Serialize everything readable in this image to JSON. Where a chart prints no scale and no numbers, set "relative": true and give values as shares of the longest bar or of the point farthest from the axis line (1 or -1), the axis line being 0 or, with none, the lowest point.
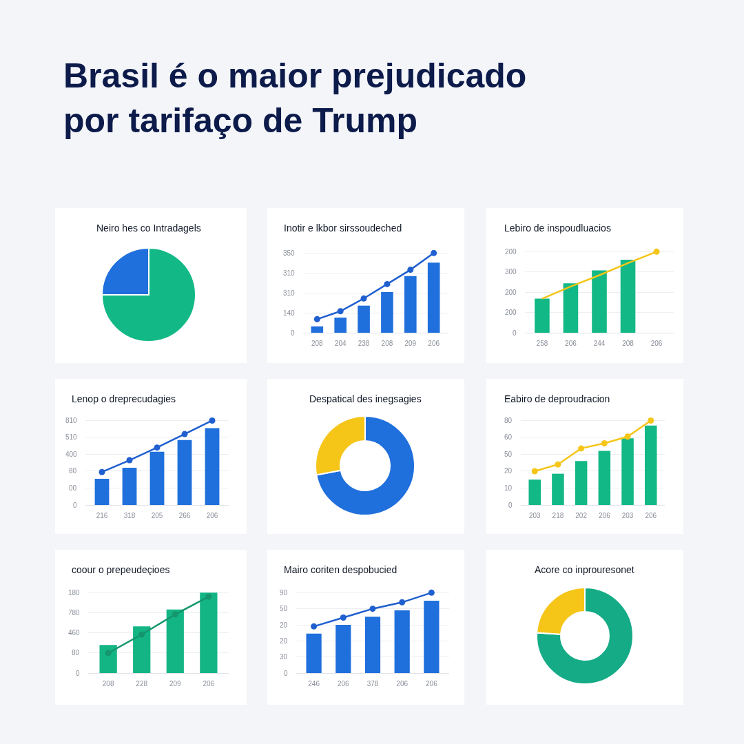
{
  "chart_data": [
    {
      "type": "other",
      "title": "Brasil é o maior prejudicado por tarifaço de Trump"
    },
    {
      "type": "pie",
      "title": "Neiro hes co Intradagels",
      "categories": [
        null,
        null
      ],
      "values": [
        75,
        25
      ],
      "colors": [
        "#12b886",
        "#1f6fdc"
      ]
    },
    {
      "type": "bar",
      "relative": true,
      "title": "Inotir e lkbor sirssoudeched",
      "categories": [
        "208",
        "204",
        "238",
        "208",
        "209",
        "206"
      ],
      "annotations": [
        "350",
        "310",
        "310",
        "140",
        "0"
      ],
      "grid": "y",
      "series": [
        {
          "type": "bar",
          "color": "#1f6fdc",
          "values": [
            0.08,
            0.19,
            0.34,
            0.51,
            0.71,
            0.88
          ]
        },
        {
          "type": "line",
          "color": "#1f5fcf",
          "marker": "circle",
          "values": [
            0.17,
            0.27,
            0.43,
            0.61,
            0.79,
            1
          ]
        }
      ]
    },
    {
      "type": "bar",
      "relative": true,
      "title": "Lebiro de inspoudluacios",
      "categories": [
        "258",
        "206",
        "244",
        "208",
        "206"
      ],
      "annotations": [
        "200",
        "300",
        "200",
        "200",
        "0"
      ],
      "grid": "y",
      "series": [
        {
          "type": "bar",
          "color": "#12b886",
          "values": [
            0.42,
            0.61,
            0.77,
            0.9,
            null
          ]
        },
        {
          "type": "line",
          "color": "#f5c518",
          "marker": "none",
          "values": [
            0.42,
            0.57,
            0.71,
            0.86,
            1
          ]
        },
        {
          "type": "scatter",
          "color": "#f5c518",
          "marker": "circle",
          "values": [
            null,
            null,
            null,
            null,
            1
          ]
        }
      ]
    },
    {
      "type": "bar",
      "relative": true,
      "title": "Lenop o dreprecudagies",
      "categories": [
        "216",
        "318",
        "205",
        "266",
        "206"
      ],
      "annotations": [
        "810",
        "510",
        "400",
        "80",
        "00",
        "0"
      ],
      "grid": "y",
      "series": [
        {
          "type": "bar",
          "color": "#1f6fdc",
          "values": [
            0.31,
            0.44,
            0.63,
            0.77,
            0.91
          ]
        },
        {
          "type": "line",
          "color": "#1f5fcf",
          "marker": "circle",
          "values": [
            0.39,
            0.53,
            0.68,
            0.84,
            1
          ]
        }
      ]
    },
    {
      "type": "donut",
      "title": "Despatical des inegsagies",
      "categories": [
        null,
        null
      ],
      "values": [
        72,
        28
      ],
      "colors": [
        "#1f6fdc",
        "#f5c518"
      ]
    },
    {
      "type": "bar",
      "relative": true,
      "title": "Eabiro de deproudracion",
      "categories": [
        "203",
        "218",
        "202",
        "206",
        "203",
        "206"
      ],
      "annotations": [
        "80",
        "60",
        "50",
        "20",
        "10",
        "0"
      ],
      "grid": "y",
      "series": [
        {
          "type": "bar",
          "color": "#12b886",
          "values": [
            0.3,
            0.37,
            0.52,
            0.64,
            0.79,
            0.94
          ]
        },
        {
          "type": "line",
          "color": "#f5c518",
          "marker": "circle",
          "values": [
            0.4,
            0.48,
            0.67,
            0.73,
            0.81,
            1
          ]
        }
      ]
    },
    {
      "type": "bar",
      "relative": true,
      "title": "coour o prepeudeçioes",
      "categories": [
        "208",
        "228",
        "209",
        "206"
      ],
      "annotations": [
        "180",
        "780",
        "460",
        "80",
        "0"
      ],
      "grid": "y",
      "series": [
        {
          "type": "bar",
          "color": "#14b585",
          "values": [
            0.35,
            0.58,
            0.79,
            1
          ]
        },
        {
          "type": "line",
          "color": "#15966c",
          "marker": "circle",
          "values": [
            0.25,
            0.48,
            0.73,
            0.95
          ]
        }
      ]
    },
    {
      "type": "bar",
      "relative": true,
      "title": "Mairo coriten despobucied",
      "categories": [
        "246",
        "206",
        "378",
        "206",
        "206"
      ],
      "annotations": [
        "90",
        "50",
        "20",
        "20",
        "30",
        "0"
      ],
      "grid": "y",
      "series": [
        {
          "type": "bar",
          "color": "#1f6fdc",
          "values": [
            0.49,
            0.6,
            0.7,
            0.78,
            0.9
          ]
        },
        {
          "type": "line",
          "color": "#1f5fcf",
          "marker": "circle",
          "values": [
            0.58,
            0.69,
            0.8,
            0.88,
            1
          ]
        }
      ]
    },
    {
      "type": "donut",
      "title": "Acore co inprouresonet",
      "categories": [
        null,
        null
      ],
      "values": [
        76,
        24
      ],
      "colors": [
        "#14ab86",
        "#f5c518"
      ]
    }
  ]
}
